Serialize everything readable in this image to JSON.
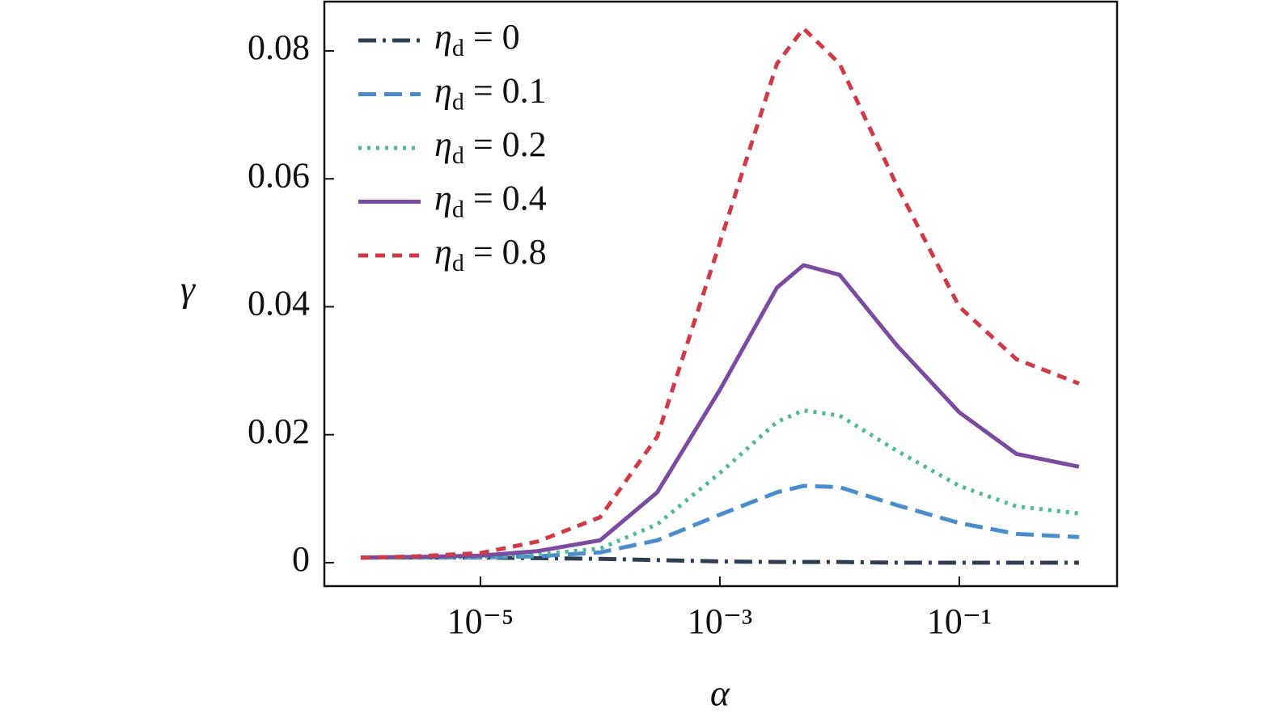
{
  "chart_data": {
    "type": "line",
    "xlabel": "α",
    "ylabel": "γ",
    "xscale": "log",
    "xlim": [
      4.97e-07,
      2.08
    ],
    "ylim": [
      -0.00367,
      0.0877
    ],
    "xticks": [
      {
        "value": 1e-05,
        "label": "10⁻⁵"
      },
      {
        "value": 0.001,
        "label": "10⁻³"
      },
      {
        "value": 0.1,
        "label": "10⁻¹"
      }
    ],
    "yticks": [
      {
        "value": 0,
        "label": "0"
      },
      {
        "value": 0.02,
        "label": "0.02"
      },
      {
        "value": 0.04,
        "label": "0.04"
      },
      {
        "value": 0.06,
        "label": "0.06"
      },
      {
        "value": 0.08,
        "label": "0.08"
      }
    ],
    "legend": "upper left",
    "x": [
      1e-06,
      3e-06,
      1e-05,
      3e-05,
      0.0001,
      0.0003,
      0.001,
      0.003,
      0.005,
      0.01,
      0.03,
      0.1,
      0.3,
      1
    ],
    "series": [
      {
        "name": "ηd = 0",
        "color": "#2f3e55",
        "dash": "dashdot",
        "values": [
          0.0008,
          0.0008,
          0.0008,
          0.0007,
          0.0006,
          0.0004,
          0.0002,
          0.0001,
          0.0001,
          0.0001,
          0,
          0,
          0,
          0
        ]
      },
      {
        "name": "ηd = 0.1",
        "color": "#4a8ccc",
        "dash": "dashed",
        "values": [
          0.0008,
          0.0008,
          0.0008,
          0.001,
          0.0016,
          0.0035,
          0.0075,
          0.011,
          0.012,
          0.0118,
          0.009,
          0.0062,
          0.0045,
          0.004
        ]
      },
      {
        "name": "ηd = 0.2",
        "color": "#4fb89a",
        "dash": "dotted",
        "values": [
          0.0008,
          0.0008,
          0.0009,
          0.0013,
          0.0022,
          0.006,
          0.014,
          0.022,
          0.0238,
          0.023,
          0.0175,
          0.012,
          0.0088,
          0.0077
        ]
      },
      {
        "name": "ηd = 0.4",
        "color": "#7b4ba0",
        "dash": "solid",
        "values": [
          0.0008,
          0.0009,
          0.0011,
          0.0018,
          0.0035,
          0.011,
          0.027,
          0.043,
          0.0465,
          0.045,
          0.034,
          0.0235,
          0.017,
          0.015
        ]
      },
      {
        "name": "ηd = 0.8",
        "color": "#d03a46",
        "dash": "shortdash",
        "values": [
          0.00076,
          0.001,
          0.0015,
          0.0033,
          0.0071,
          0.0197,
          0.05,
          0.078,
          0.0835,
          0.078,
          0.059,
          0.04,
          0.0318,
          0.028
        ]
      }
    ]
  }
}
